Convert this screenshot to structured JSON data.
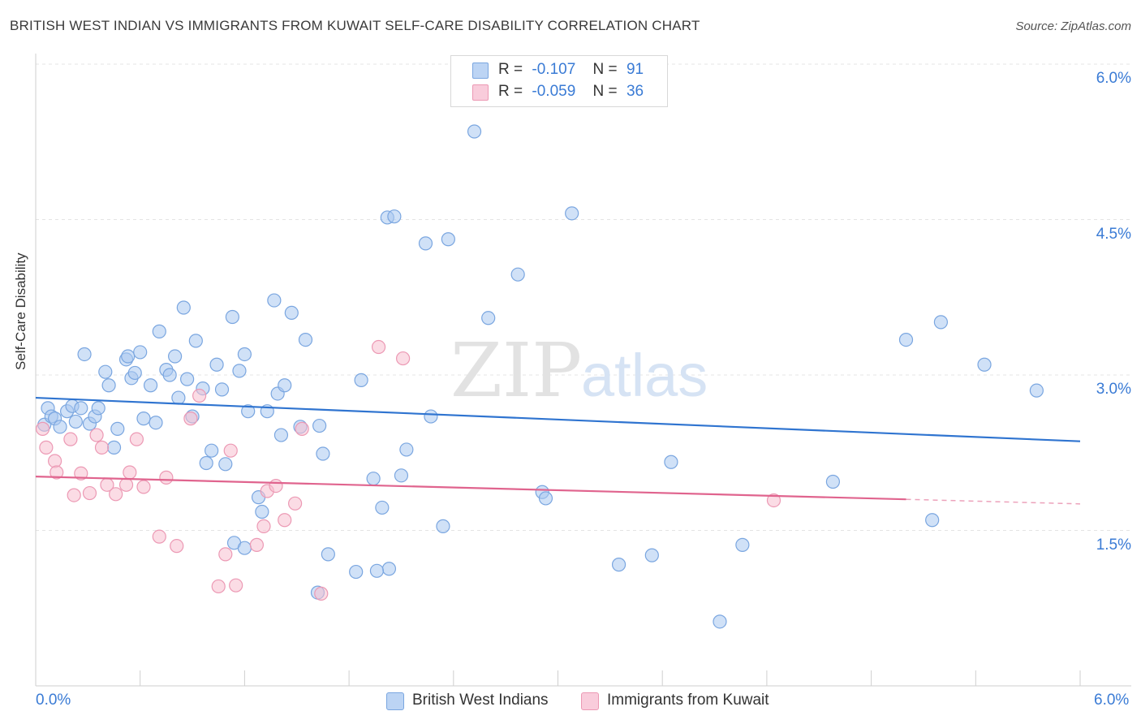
{
  "header": {
    "title": "BRITISH WEST INDIAN VS IMMIGRANTS FROM KUWAIT SELF-CARE DISABILITY CORRELATION CHART",
    "source": "Source: ZipAtlas.com"
  },
  "legend": {
    "rows": [
      {
        "r_label": "R =",
        "r_value": "-0.107",
        "n_label": "N =",
        "n_value": "91"
      },
      {
        "r_label": "R =",
        "r_value": "-0.059",
        "n_label": "N =",
        "n_value": "36"
      }
    ]
  },
  "bottom_legend": {
    "series_a": "British West Indians",
    "series_b": "Immigrants from Kuwait"
  },
  "axes": {
    "x_min_label": "0.0%",
    "x_max_label": "6.0%",
    "y_ticks": [
      "6.0%",
      "4.5%",
      "3.0%",
      "1.5%"
    ],
    "ylabel": "Self-Care Disability"
  },
  "colors": {
    "blue_fill": "#a9c8f0",
    "blue_stroke": "#7aa6e0",
    "blue_line": "#2f74d0",
    "pink_fill": "#f7bfd0",
    "pink_stroke": "#ec99b4",
    "pink_line": "#e0648e",
    "accent_text": "#3a7bd5",
    "grid": "#e4e4e4"
  },
  "chart_data": {
    "type": "scatter",
    "title": "BRITISH WEST INDIAN VS IMMIGRANTS FROM KUWAIT SELF-CARE DISABILITY CORRELATION CHART",
    "xlabel": "",
    "ylabel": "Self-Care Disability",
    "xlim": [
      0,
      6.0
    ],
    "ylim": [
      0,
      6.0
    ],
    "x_unit": "%",
    "y_unit": "%",
    "y_ticks": [
      1.5,
      3.0,
      4.5,
      6.0
    ],
    "grid": true,
    "legend_position": "top-center",
    "series": [
      {
        "name": "British West Indians",
        "color": "#a9c8f0",
        "r": -0.107,
        "n": 91,
        "trend": {
          "x": [
            0,
            6.0
          ],
          "y": [
            2.78,
            2.36
          ]
        },
        "points": [
          [
            0.05,
            2.52
          ],
          [
            0.07,
            2.68
          ],
          [
            0.09,
            2.6
          ],
          [
            0.11,
            2.58
          ],
          [
            0.14,
            2.5
          ],
          [
            0.18,
            2.65
          ],
          [
            0.21,
            2.7
          ],
          [
            0.23,
            2.55
          ],
          [
            0.26,
            2.68
          ],
          [
            0.28,
            3.2
          ],
          [
            0.31,
            2.53
          ],
          [
            0.34,
            2.6
          ],
          [
            0.36,
            2.68
          ],
          [
            0.4,
            3.03
          ],
          [
            0.42,
            2.9
          ],
          [
            0.45,
            2.3
          ],
          [
            0.47,
            2.48
          ],
          [
            0.52,
            3.15
          ],
          [
            0.53,
            3.18
          ],
          [
            0.55,
            2.97
          ],
          [
            0.57,
            3.02
          ],
          [
            0.6,
            3.22
          ],
          [
            0.62,
            2.58
          ],
          [
            0.66,
            2.9
          ],
          [
            0.69,
            2.54
          ],
          [
            0.71,
            3.42
          ],
          [
            0.75,
            3.05
          ],
          [
            0.77,
            3.0
          ],
          [
            0.8,
            3.18
          ],
          [
            0.82,
            2.78
          ],
          [
            0.85,
            3.65
          ],
          [
            0.87,
            2.96
          ],
          [
            0.9,
            2.6
          ],
          [
            0.92,
            3.33
          ],
          [
            0.96,
            2.87
          ],
          [
            0.98,
            2.15
          ],
          [
            1.01,
            2.27
          ],
          [
            1.04,
            3.1
          ],
          [
            1.07,
            2.86
          ],
          [
            1.09,
            2.14
          ],
          [
            1.13,
            3.56
          ],
          [
            1.17,
            3.04
          ],
          [
            1.2,
            3.2
          ],
          [
            1.22,
            2.65
          ],
          [
            1.28,
            1.82
          ],
          [
            1.3,
            1.68
          ],
          [
            1.33,
            2.65
          ],
          [
            1.37,
            3.72
          ],
          [
            1.39,
            2.82
          ],
          [
            1.41,
            2.42
          ],
          [
            1.43,
            2.9
          ],
          [
            1.47,
            3.6
          ],
          [
            1.52,
            2.5
          ],
          [
            1.55,
            3.34
          ],
          [
            1.63,
            2.51
          ],
          [
            1.65,
            2.24
          ],
          [
            1.68,
            1.27
          ],
          [
            1.84,
            1.1
          ],
          [
            1.87,
            2.95
          ],
          [
            1.94,
            2.0
          ],
          [
            1.99,
            1.72
          ],
          [
            2.02,
            4.52
          ],
          [
            2.06,
            4.53
          ],
          [
            2.1,
            2.03
          ],
          [
            2.13,
            2.28
          ],
          [
            2.24,
            4.27
          ],
          [
            2.27,
            2.6
          ],
          [
            2.34,
            1.54
          ],
          [
            2.37,
            4.31
          ],
          [
            2.52,
            5.35
          ],
          [
            2.6,
            3.55
          ],
          [
            2.77,
            3.97
          ],
          [
            2.91,
            1.87
          ],
          [
            2.93,
            1.81
          ],
          [
            3.08,
            4.56
          ],
          [
            3.35,
            1.17
          ],
          [
            3.54,
            1.26
          ],
          [
            3.65,
            2.16
          ],
          [
            3.93,
            0.62
          ],
          [
            4.06,
            1.36
          ],
          [
            4.58,
            1.97
          ],
          [
            5.0,
            3.34
          ],
          [
            5.15,
            1.6
          ],
          [
            5.2,
            3.51
          ],
          [
            5.45,
            3.1
          ],
          [
            5.75,
            2.85
          ],
          [
            1.14,
            1.38
          ],
          [
            1.2,
            1.33
          ],
          [
            2.03,
            1.13
          ],
          [
            1.96,
            1.11
          ],
          [
            1.62,
            0.9
          ]
        ]
      },
      {
        "name": "Immigrants from Kuwait",
        "color": "#f7bfd0",
        "r": -0.059,
        "n": 36,
        "trend": {
          "x": [
            0,
            5.0
          ],
          "y": [
            2.02,
            1.8
          ]
        },
        "points": [
          [
            0.04,
            2.48
          ],
          [
            0.06,
            2.3
          ],
          [
            0.11,
            2.17
          ],
          [
            0.12,
            2.06
          ],
          [
            0.2,
            2.38
          ],
          [
            0.22,
            1.84
          ],
          [
            0.26,
            2.05
          ],
          [
            0.31,
            1.86
          ],
          [
            0.35,
            2.42
          ],
          [
            0.38,
            2.3
          ],
          [
            0.41,
            1.94
          ],
          [
            0.46,
            1.85
          ],
          [
            0.52,
            1.94
          ],
          [
            0.54,
            2.06
          ],
          [
            0.58,
            2.38
          ],
          [
            0.62,
            1.92
          ],
          [
            0.71,
            1.44
          ],
          [
            0.75,
            2.01
          ],
          [
            0.81,
            1.35
          ],
          [
            0.89,
            2.58
          ],
          [
            0.94,
            2.8
          ],
          [
            1.05,
            0.96
          ],
          [
            1.09,
            1.27
          ],
          [
            1.12,
            2.27
          ],
          [
            1.15,
            0.97
          ],
          [
            1.27,
            1.36
          ],
          [
            1.31,
            1.54
          ],
          [
            1.33,
            1.88
          ],
          [
            1.38,
            1.93
          ],
          [
            1.43,
            1.6
          ],
          [
            1.49,
            1.76
          ],
          [
            1.53,
            2.48
          ],
          [
            1.97,
            3.27
          ],
          [
            2.11,
            3.16
          ],
          [
            4.24,
            1.79
          ],
          [
            1.64,
            0.89
          ]
        ]
      }
    ]
  }
}
